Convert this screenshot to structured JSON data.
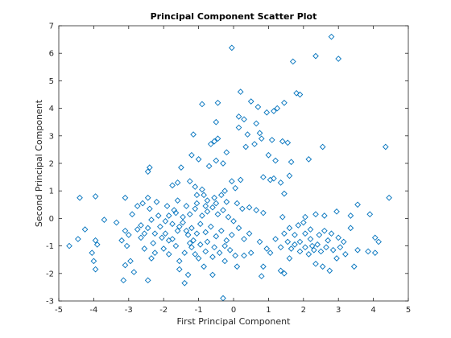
{
  "chart_data": {
    "type": "scatter",
    "title": "Principal Component Scatter Plot",
    "xlabel": "First Principal Component",
    "ylabel": "Second Principal Component",
    "xlim": [
      -5,
      5
    ],
    "ylim": [
      -3,
      7
    ],
    "xticks": [
      "-5",
      "-4",
      "-3",
      "-2",
      "-1",
      "0",
      "1",
      "2",
      "3",
      "4",
      "5"
    ],
    "yticks": [
      "-3",
      "-2",
      "-1",
      "0",
      "1",
      "2",
      "3",
      "4",
      "5",
      "6",
      "7"
    ],
    "marker": "diamond",
    "color": "#0072BD",
    "grid": false,
    "series": [
      {
        "points": [
          [
            -0.05,
            6.2
          ],
          [
            2.8,
            6.6
          ],
          [
            2.35,
            5.9
          ],
          [
            3.0,
            5.8
          ],
          [
            1.7,
            5.7
          ],
          [
            1.8,
            4.55
          ],
          [
            1.9,
            4.5
          ],
          [
            0.2,
            4.6
          ],
          [
            0.5,
            4.25
          ],
          [
            0.7,
            4.05
          ],
          [
            1.45,
            4.2
          ],
          [
            1.25,
            4.0
          ],
          [
            1.15,
            3.9
          ],
          [
            0.95,
            3.85
          ],
          [
            -0.45,
            4.2
          ],
          [
            -0.9,
            4.15
          ],
          [
            -1.15,
            3.05
          ],
          [
            -0.5,
            3.5
          ],
          [
            0.15,
            3.7
          ],
          [
            0.3,
            3.6
          ],
          [
            0.15,
            3.3
          ],
          [
            0.65,
            3.45
          ],
          [
            0.4,
            3.05
          ],
          [
            0.75,
            3.1
          ],
          [
            0.8,
            2.9
          ],
          [
            1.1,
            2.85
          ],
          [
            1.4,
            2.8
          ],
          [
            1.55,
            2.75
          ],
          [
            0.6,
            2.7
          ],
          [
            0.35,
            2.6
          ],
          [
            -0.65,
            2.7
          ],
          [
            -0.55,
            2.8
          ],
          [
            -0.45,
            2.9
          ],
          [
            -0.2,
            2.4
          ],
          [
            -1.2,
            2.3
          ],
          [
            -1.0,
            2.15
          ],
          [
            1.0,
            2.3
          ],
          [
            1.2,
            2.1
          ],
          [
            1.65,
            2.05
          ],
          [
            2.55,
            2.6
          ],
          [
            2.15,
            2.15
          ],
          [
            4.35,
            2.6
          ],
          [
            -0.5,
            2.1
          ],
          [
            -0.3,
            2.0
          ],
          [
            -0.7,
            1.9
          ],
          [
            -1.5,
            1.85
          ],
          [
            -2.4,
            1.85
          ],
          [
            -2.45,
            1.7
          ],
          [
            0.85,
            1.5
          ],
          [
            1.05,
            1.4
          ],
          [
            1.15,
            1.45
          ],
          [
            1.35,
            1.3
          ],
          [
            1.6,
            1.55
          ],
          [
            1.45,
            0.9
          ],
          [
            0.2,
            1.4
          ],
          [
            -0.05,
            1.35
          ],
          [
            -1.25,
            1.35
          ],
          [
            -1.6,
            1.3
          ],
          [
            -1.75,
            1.2
          ],
          [
            -1.1,
            1.15
          ],
          [
            -0.9,
            1.05
          ],
          [
            -0.85,
            0.85
          ],
          [
            -1.05,
            0.85
          ],
          [
            -0.25,
            1.0
          ],
          [
            0.05,
            1.1
          ],
          [
            -0.35,
            0.85
          ],
          [
            -0.55,
            0.75
          ],
          [
            -0.75,
            0.65
          ],
          [
            -4.4,
            0.75
          ],
          [
            -3.95,
            0.8
          ],
          [
            -3.1,
            0.75
          ],
          [
            -2.45,
            0.75
          ],
          [
            -2.6,
            0.55
          ],
          [
            -2.75,
            0.45
          ],
          [
            -2.4,
            0.35
          ],
          [
            -2.2,
            0.6
          ],
          [
            -1.9,
            0.45
          ],
          [
            -1.7,
            0.3
          ],
          [
            0.1,
            0.55
          ],
          [
            0.25,
            0.35
          ],
          [
            0.45,
            0.4
          ],
          [
            0.65,
            0.3
          ],
          [
            0.85,
            0.2
          ],
          [
            1.4,
            0.05
          ],
          [
            2.05,
            0.05
          ],
          [
            2.35,
            0.15
          ],
          [
            2.6,
            0.1
          ],
          [
            2.95,
            0.25
          ],
          [
            3.35,
            0.1
          ],
          [
            3.55,
            0.5
          ],
          [
            3.9,
            0.15
          ],
          [
            4.45,
            0.75
          ],
          [
            -2.9,
            0.15
          ],
          [
            -3.35,
            -0.15
          ],
          [
            -3.7,
            -0.05
          ],
          [
            -4.25,
            -0.4
          ],
          [
            -4.45,
            -0.75
          ],
          [
            -4.7,
            -1.0
          ],
          [
            -3.95,
            -0.8
          ],
          [
            -3.9,
            -0.95
          ],
          [
            -4.05,
            -1.25
          ],
          [
            -3.95,
            -1.85
          ],
          [
            -4.0,
            -1.55
          ],
          [
            -3.1,
            -0.45
          ],
          [
            -3.0,
            -0.6
          ],
          [
            -2.75,
            -0.4
          ],
          [
            -2.55,
            -0.55
          ],
          [
            -2.65,
            -0.7
          ],
          [
            -3.2,
            -0.8
          ],
          [
            -3.05,
            -1.0
          ],
          [
            -3.1,
            -1.7
          ],
          [
            -3.15,
            -2.25
          ],
          [
            -2.95,
            -1.55
          ],
          [
            -2.85,
            -1.95
          ],
          [
            -2.45,
            -2.25
          ],
          [
            -2.3,
            -0.9
          ],
          [
            -2.55,
            -1.1
          ],
          [
            -2.25,
            -1.25
          ],
          [
            -2.35,
            -1.45
          ],
          [
            -2.0,
            -1.1
          ],
          [
            -1.85,
            -1.3
          ],
          [
            -1.55,
            -1.55
          ],
          [
            -1.4,
            -1.25
          ],
          [
            -1.2,
            -1.05
          ],
          [
            -1.1,
            -1.3
          ],
          [
            -1.55,
            -1.85
          ],
          [
            -1.3,
            -2.05
          ],
          [
            -1.4,
            -2.35
          ],
          [
            -0.85,
            -1.75
          ],
          [
            -0.6,
            -2.05
          ],
          [
            -0.3,
            -2.9
          ],
          [
            -0.25,
            -1.55
          ],
          [
            0.1,
            -1.75
          ],
          [
            0.3,
            -1.35
          ],
          [
            0.5,
            -1.25
          ],
          [
            0.75,
            -0.85
          ],
          [
            0.95,
            -1.1
          ],
          [
            0.85,
            -1.75
          ],
          [
            0.8,
            -2.1
          ],
          [
            1.05,
            -1.25
          ],
          [
            1.35,
            -1.9
          ],
          [
            1.45,
            -2.0
          ],
          [
            1.6,
            -1.45
          ],
          [
            1.65,
            -1.1
          ],
          [
            1.9,
            -1.2
          ],
          [
            2.15,
            -1.3
          ],
          [
            2.35,
            -1.65
          ],
          [
            2.55,
            -1.75
          ],
          [
            2.75,
            -1.9
          ],
          [
            2.95,
            -1.45
          ],
          [
            3.2,
            -1.3
          ],
          [
            3.45,
            -1.75
          ],
          [
            3.55,
            -1.15
          ],
          [
            3.85,
            -1.2
          ],
          [
            4.05,
            -0.7
          ],
          [
            4.15,
            -0.85
          ],
          [
            4.05,
            -1.25
          ],
          [
            1.2,
            -0.75
          ],
          [
            1.45,
            -0.55
          ],
          [
            1.6,
            -0.35
          ],
          [
            1.85,
            -0.25
          ],
          [
            2.05,
            -0.55
          ],
          [
            2.2,
            -0.75
          ],
          [
            2.4,
            -0.95
          ],
          [
            2.6,
            -0.45
          ],
          [
            2.8,
            -0.55
          ],
          [
            3.0,
            -0.7
          ],
          [
            3.15,
            -0.85
          ],
          [
            3.35,
            -0.35
          ],
          [
            3.05,
            -1.05
          ],
          [
            2.85,
            -1.15
          ],
          [
            2.5,
            -1.2
          ],
          [
            2.25,
            -1.0
          ],
          [
            2.05,
            -1.05
          ],
          [
            1.75,
            -0.95
          ],
          [
            1.55,
            -0.85
          ],
          [
            1.35,
            -1.05
          ],
          [
            2.7,
            -0.8
          ],
          [
            2.45,
            -0.6
          ],
          [
            2.2,
            -0.4
          ],
          [
            2.0,
            -0.15
          ],
          [
            1.75,
            -0.6
          ],
          [
            1.9,
            -0.85
          ],
          [
            2.3,
            -1.15
          ],
          [
            2.65,
            -1.05
          ],
          [
            -2.1,
            -0.3
          ],
          [
            -1.95,
            -0.55
          ],
          [
            -1.75,
            -0.75
          ],
          [
            -1.6,
            -0.45
          ],
          [
            -1.45,
            -0.15
          ],
          [
            -1.3,
            -0.6
          ],
          [
            -1.2,
            -0.35
          ],
          [
            -1.05,
            -0.55
          ],
          [
            -0.95,
            -0.2
          ],
          [
            -0.8,
            -0.5
          ],
          [
            -0.65,
            -0.3
          ],
          [
            -0.5,
            -0.65
          ],
          [
            -0.35,
            -0.45
          ],
          [
            -0.2,
            -0.8
          ],
          [
            -0.05,
            -0.6
          ],
          [
            0.15,
            -0.35
          ],
          [
            0.3,
            -0.75
          ],
          [
            0.45,
            -0.55
          ],
          [
            -1.85,
            0.1
          ],
          [
            -1.65,
            0.2
          ],
          [
            -1.45,
            0.05
          ],
          [
            -1.25,
            0.15
          ],
          [
            -1.1,
            0.35
          ],
          [
            -0.9,
            0.1
          ],
          [
            -0.75,
            0.25
          ],
          [
            -0.6,
            0.4
          ],
          [
            -0.45,
            0.15
          ],
          [
            -0.3,
            0.3
          ],
          [
            -0.15,
            0.05
          ],
          [
            0.0,
            -0.1
          ],
          [
            -2.35,
            -0.05
          ],
          [
            -2.15,
            0.1
          ],
          [
            -1.95,
            -0.1
          ],
          [
            -1.75,
            -0.2
          ],
          [
            -1.55,
            -0.3
          ],
          [
            -1.35,
            -0.45
          ],
          [
            -1.15,
            -0.8
          ],
          [
            -0.95,
            -0.95
          ],
          [
            -0.75,
            -0.85
          ],
          [
            -0.55,
            -1.05
          ],
          [
            -0.4,
            -1.25
          ],
          [
            -0.25,
            -1.0
          ],
          [
            -0.1,
            -1.15
          ],
          [
            0.05,
            -1.35
          ],
          [
            -1.65,
            -1.0
          ],
          [
            -1.85,
            -0.8
          ],
          [
            -2.05,
            -0.7
          ],
          [
            -2.25,
            -0.55
          ],
          [
            -2.45,
            -0.35
          ],
          [
            -2.65,
            -0.25
          ],
          [
            -1.0,
            -1.45
          ],
          [
            -0.8,
            -1.2
          ],
          [
            -0.6,
            -1.4
          ],
          [
            -1.25,
            -0.9
          ],
          [
            -1.05,
            0.55
          ],
          [
            -1.35,
            0.45
          ],
          [
            -1.6,
            0.65
          ],
          [
            -0.8,
            0.45
          ],
          [
            -0.5,
            0.55
          ],
          [
            -0.2,
            0.6
          ]
        ]
      }
    ]
  }
}
